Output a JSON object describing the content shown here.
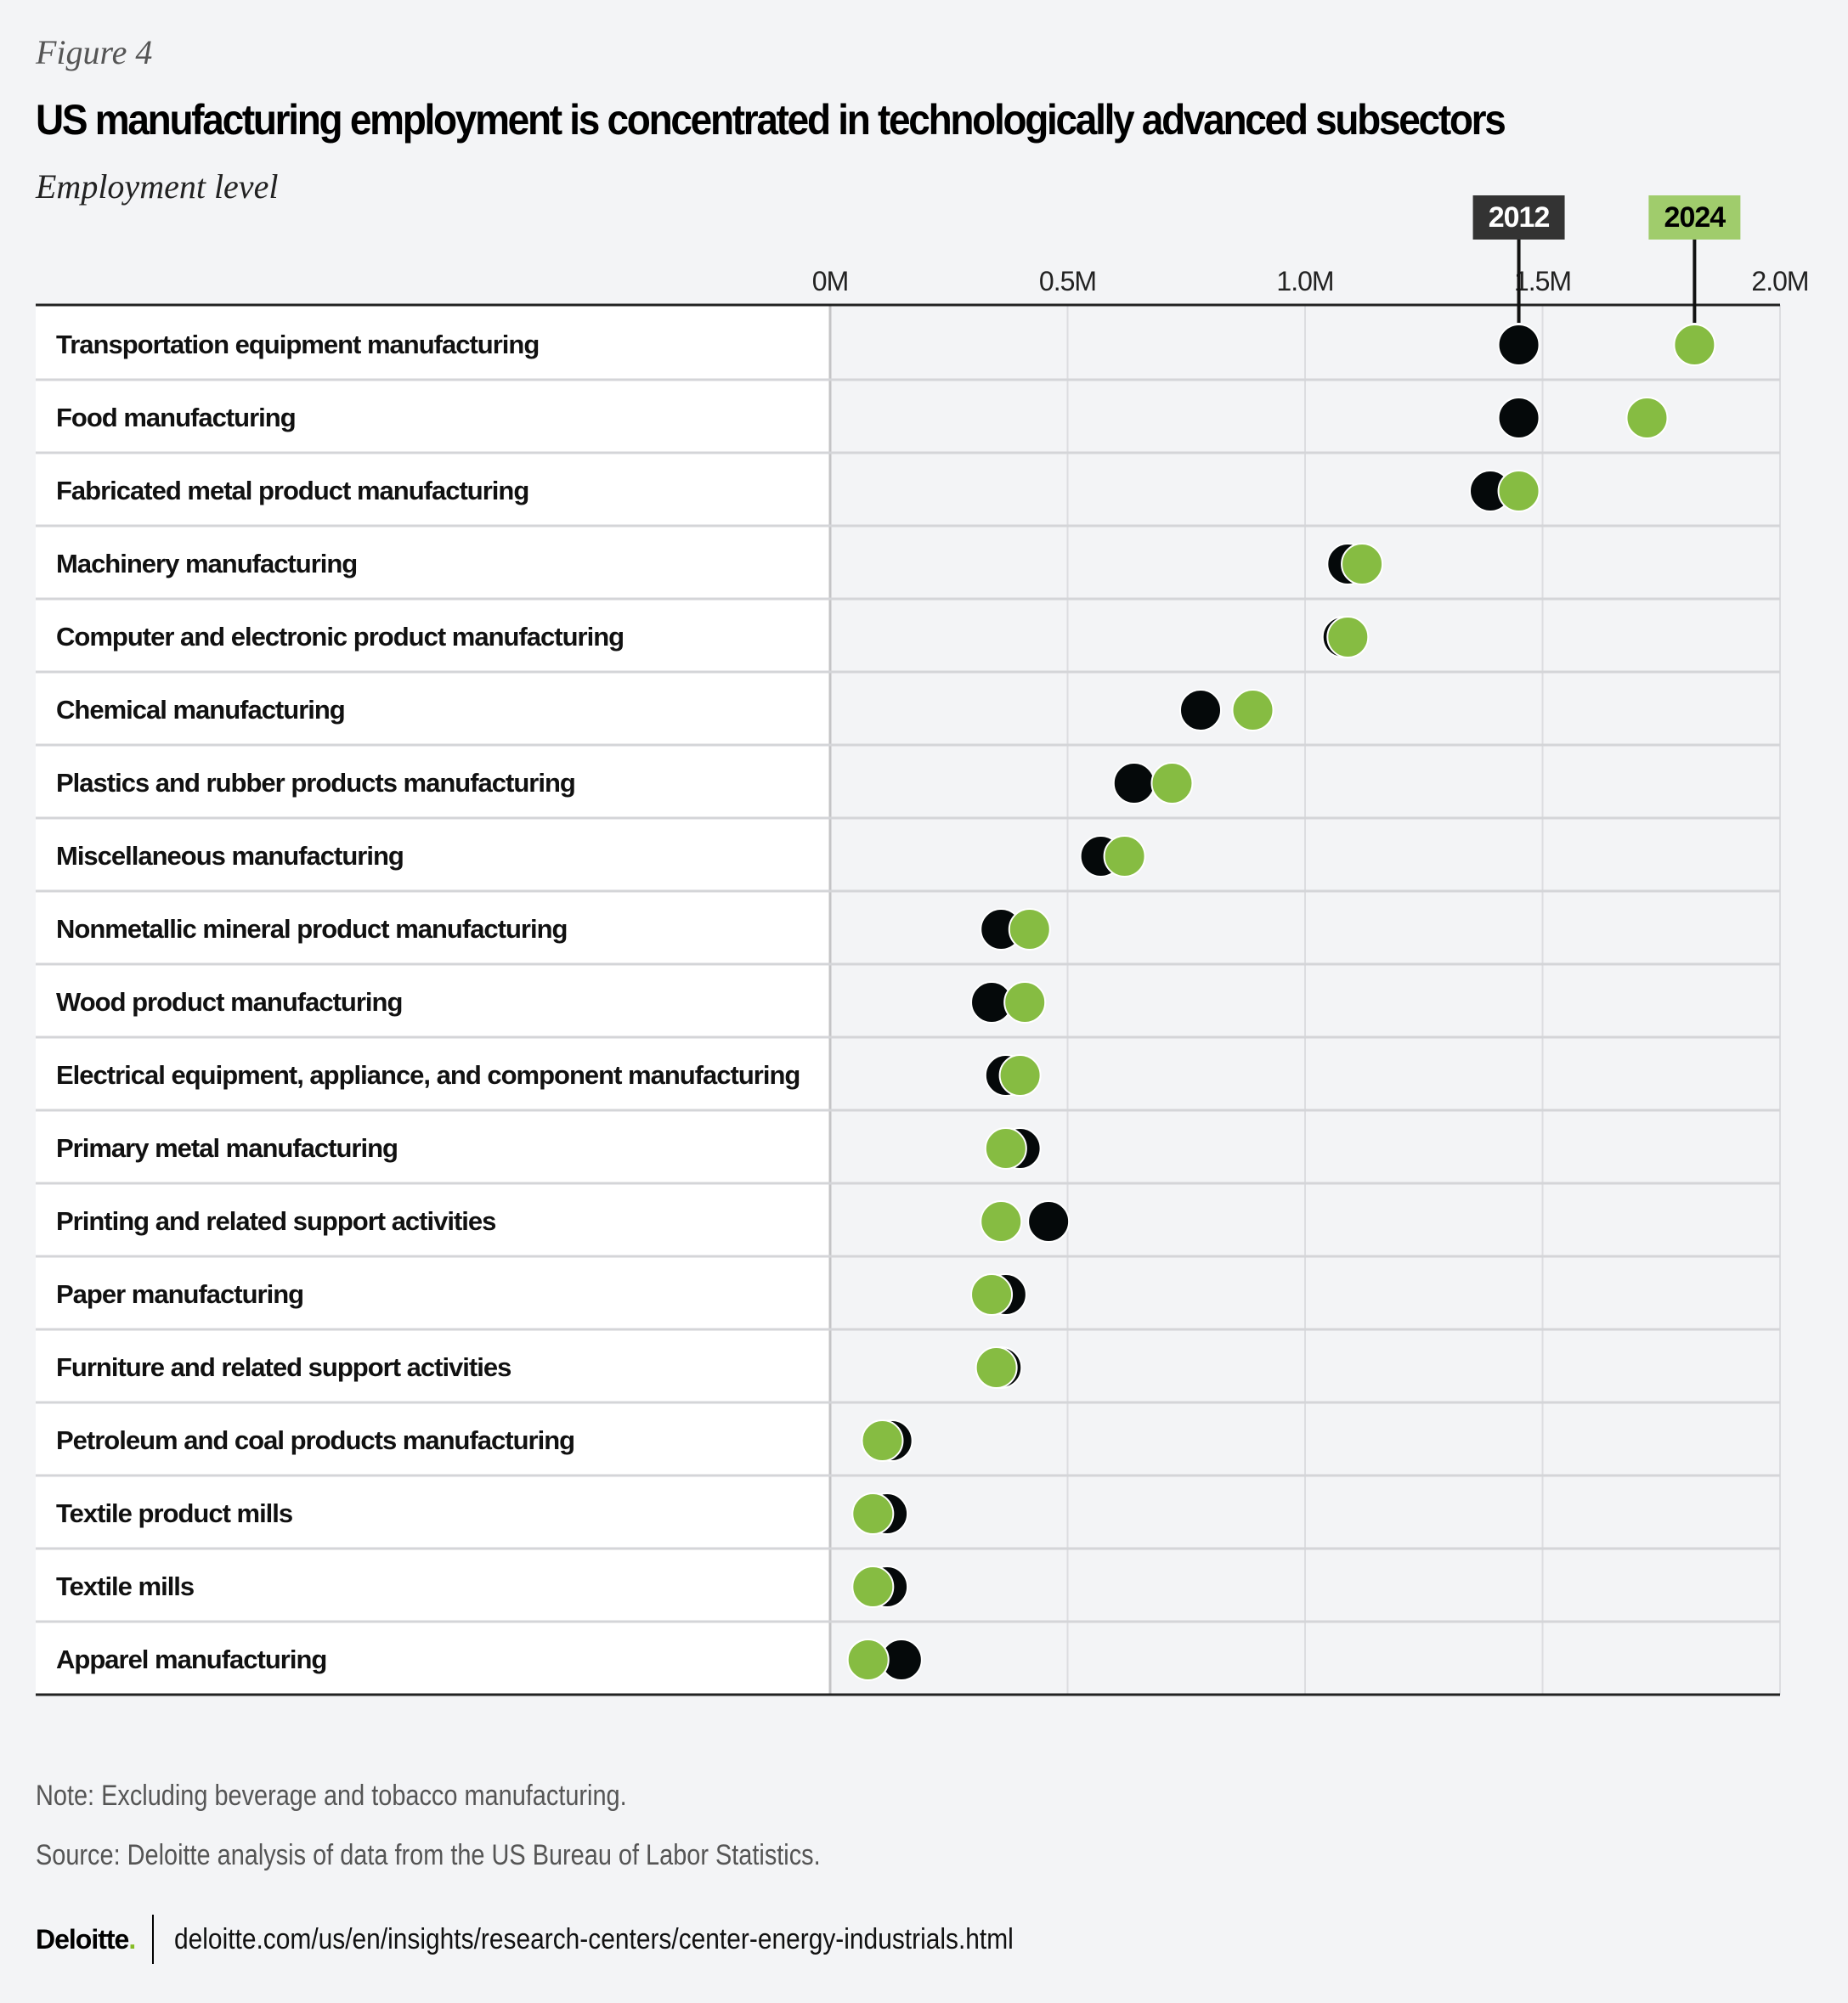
{
  "figure_label": "Figure 4",
  "title": "US manufacturing employment is concentrated in technologically advanced subsectors",
  "subtitle": "Employment level",
  "note": "Note: Excluding beverage and tobacco manufacturing.",
  "source": "Source: Deloitte analysis of data from the US Bureau of Labor Statistics.",
  "footer": {
    "logo": "Deloitte",
    "logo_dot": ".",
    "url": "deloitte.com/us/en/insights/research-centers/center-energy-industrials.html"
  },
  "colors": {
    "y2012": "#05090a",
    "y2024": "#86bc42",
    "legend2012_bg": "#333333",
    "legend2024_bg": "#a0cc6c"
  },
  "chart_data": {
    "type": "scatter",
    "subtype": "dot-plot",
    "title": "US manufacturing employment is concentrated in technologically advanced subsectors",
    "ylabel": "",
    "xlabel": "Employment level",
    "xlim": [
      0,
      2.0
    ],
    "x_unit": "millions",
    "x_ticks": [
      "0M",
      "0.5M",
      "1.0M",
      "1.5M",
      "2.0M"
    ],
    "x_tick_values": [
      0,
      0.5,
      1.0,
      1.5,
      2.0
    ],
    "grid": true,
    "legend_position": "top-right",
    "categories": [
      "Transportation equipment manufacturing",
      "Food manufacturing",
      "Fabricated metal product manufacturing",
      "Machinery manufacturing",
      "Computer and electronic product manufacturing",
      "Chemical manufacturing",
      "Plastics and rubber products manufacturing",
      "Miscellaneous manufacturing",
      "Nonmetallic mineral product manufacturing",
      "Wood product manufacturing",
      "Electrical equipment, appliance, and component manufacturing",
      "Primary metal manufacturing",
      "Printing and related support activities",
      "Paper manufacturing",
      "Furniture and related support activities",
      "Petroleum and coal products manufacturing",
      "Textile product mills",
      "Textile mills",
      "Apparel manufacturing"
    ],
    "series": [
      {
        "name": "2012",
        "values": [
          1.45,
          1.45,
          1.39,
          1.09,
          1.08,
          0.78,
          0.64,
          0.57,
          0.36,
          0.34,
          0.37,
          0.4,
          0.46,
          0.37,
          0.36,
          0.13,
          0.12,
          0.12,
          0.15
        ]
      },
      {
        "name": "2024",
        "values": [
          1.82,
          1.72,
          1.45,
          1.12,
          1.09,
          0.89,
          0.72,
          0.62,
          0.42,
          0.41,
          0.4,
          0.37,
          0.36,
          0.34,
          0.35,
          0.11,
          0.09,
          0.09,
          0.08
        ]
      }
    ]
  }
}
